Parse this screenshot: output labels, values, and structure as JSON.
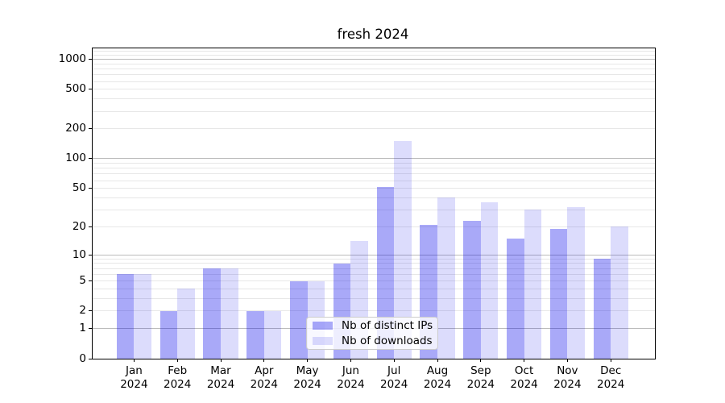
{
  "chart_data": {
    "type": "bar",
    "title": "fresh 2024",
    "categories": [
      {
        "month": "Jan",
        "year": "2024"
      },
      {
        "month": "Feb",
        "year": "2024"
      },
      {
        "month": "Mar",
        "year": "2024"
      },
      {
        "month": "Apr",
        "year": "2024"
      },
      {
        "month": "May",
        "year": "2024"
      },
      {
        "month": "Jun",
        "year": "2024"
      },
      {
        "month": "Jul",
        "year": "2024"
      },
      {
        "month": "Aug",
        "year": "2024"
      },
      {
        "month": "Sep",
        "year": "2024"
      },
      {
        "month": "Oct",
        "year": "2024"
      },
      {
        "month": "Nov",
        "year": "2024"
      },
      {
        "month": "Dec",
        "year": "2024"
      }
    ],
    "series": [
      {
        "name": "Nb of distinct IPs",
        "values": [
          6,
          2,
          7,
          2,
          5,
          8,
          52,
          21,
          23,
          15,
          19,
          9
        ],
        "color": "rgba(10,10,235,0.35)"
      },
      {
        "name": "Nb of downloads",
        "values": [
          6,
          4,
          7,
          2,
          5,
          14,
          150,
          40,
          36,
          30,
          32,
          20
        ],
        "color": "rgba(10,10,235,0.14)"
      }
    ],
    "y_scale": "log10(1+v)",
    "ylim": [
      0,
      1290
    ],
    "y_ticks_labeled": [
      0,
      1,
      2,
      5,
      10,
      20,
      50,
      100,
      200,
      500,
      1000
    ],
    "y_gridlines_major": [
      1,
      10,
      100,
      1000
    ],
    "y_gridlines_minor": [
      2,
      3,
      4,
      5,
      6,
      7,
      8,
      9,
      20,
      30,
      40,
      50,
      60,
      70,
      80,
      90,
      200,
      300,
      400,
      500,
      600,
      700,
      800,
      900,
      1100,
      1200
    ],
    "grid": true,
    "legend_position": "lower center (inside plot)"
  },
  "colors": {
    "bar_dark": "rgba(10,10,235,0.35)",
    "bar_light": "rgba(10,10,235,0.14)",
    "grid_major": "#bbbbbb",
    "grid_minor": "#e7e7e7",
    "axis": "#000000",
    "legend_border": "#cccccc",
    "legend_background": "rgba(255,255,255,0.8)"
  }
}
